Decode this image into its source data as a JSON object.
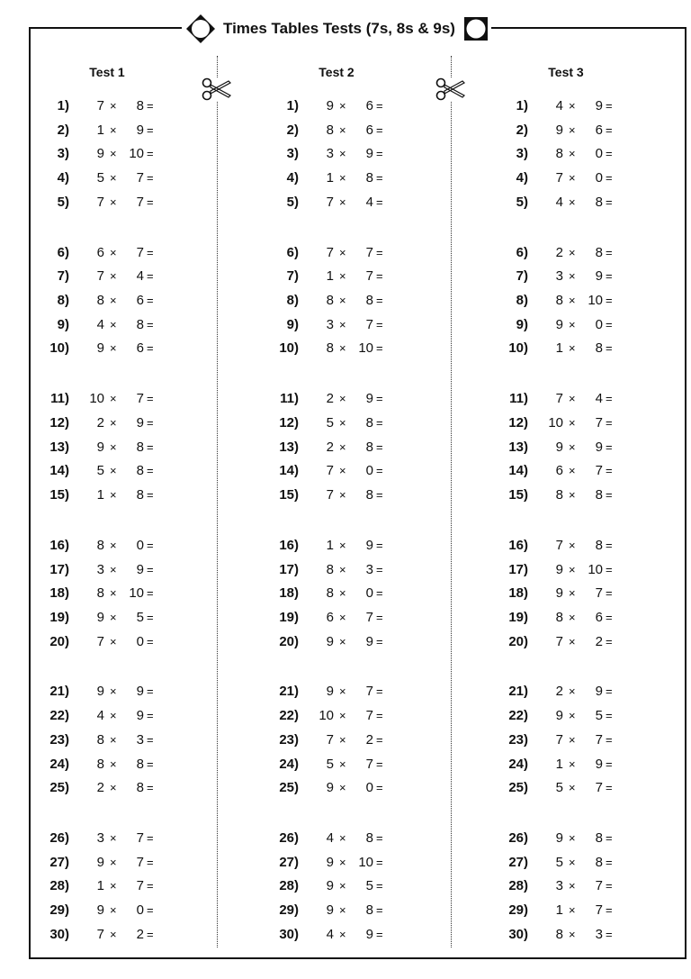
{
  "title": "Times Tables Tests (7s, 8s & 9s)",
  "icons": {
    "left_marker": "diamond-circle-icon",
    "right_marker": "square-circle-icon",
    "cut": "scissors-icon"
  },
  "operator": "×",
  "equals": "=",
  "tests": [
    {
      "title": "Test 1",
      "problems": [
        {
          "n": "1)",
          "a": "7",
          "b": "8"
        },
        {
          "n": "2)",
          "a": "1",
          "b": "9"
        },
        {
          "n": "3)",
          "a": "9",
          "b": "10"
        },
        {
          "n": "4)",
          "a": "5",
          "b": "7"
        },
        {
          "n": "5)",
          "a": "7",
          "b": "7"
        },
        {
          "n": "6)",
          "a": "6",
          "b": "7"
        },
        {
          "n": "7)",
          "a": "7",
          "b": "4"
        },
        {
          "n": "8)",
          "a": "8",
          "b": "6"
        },
        {
          "n": "9)",
          "a": "4",
          "b": "8"
        },
        {
          "n": "10)",
          "a": "9",
          "b": "6"
        },
        {
          "n": "11)",
          "a": "10",
          "b": "7"
        },
        {
          "n": "12)",
          "a": "2",
          "b": "9"
        },
        {
          "n": "13)",
          "a": "9",
          "b": "8"
        },
        {
          "n": "14)",
          "a": "5",
          "b": "8"
        },
        {
          "n": "15)",
          "a": "1",
          "b": "8"
        },
        {
          "n": "16)",
          "a": "8",
          "b": "0"
        },
        {
          "n": "17)",
          "a": "3",
          "b": "9"
        },
        {
          "n": "18)",
          "a": "8",
          "b": "10"
        },
        {
          "n": "19)",
          "a": "9",
          "b": "5"
        },
        {
          "n": "20)",
          "a": "7",
          "b": "0"
        },
        {
          "n": "21)",
          "a": "9",
          "b": "9"
        },
        {
          "n": "22)",
          "a": "4",
          "b": "9"
        },
        {
          "n": "23)",
          "a": "8",
          "b": "3"
        },
        {
          "n": "24)",
          "a": "8",
          "b": "8"
        },
        {
          "n": "25)",
          "a": "2",
          "b": "8"
        },
        {
          "n": "26)",
          "a": "3",
          "b": "7"
        },
        {
          "n": "27)",
          "a": "9",
          "b": "7"
        },
        {
          "n": "28)",
          "a": "1",
          "b": "7"
        },
        {
          "n": "29)",
          "a": "9",
          "b": "0"
        },
        {
          "n": "30)",
          "a": "7",
          "b": "2"
        }
      ]
    },
    {
      "title": "Test 2",
      "problems": [
        {
          "n": "1)",
          "a": "9",
          "b": "6"
        },
        {
          "n": "2)",
          "a": "8",
          "b": "6"
        },
        {
          "n": "3)",
          "a": "3",
          "b": "9"
        },
        {
          "n": "4)",
          "a": "1",
          "b": "8"
        },
        {
          "n": "5)",
          "a": "7",
          "b": "4"
        },
        {
          "n": "6)",
          "a": "7",
          "b": "7"
        },
        {
          "n": "7)",
          "a": "1",
          "b": "7"
        },
        {
          "n": "8)",
          "a": "8",
          "b": "8"
        },
        {
          "n": "9)",
          "a": "3",
          "b": "7"
        },
        {
          "n": "10)",
          "a": "8",
          "b": "10"
        },
        {
          "n": "11)",
          "a": "2",
          "b": "9"
        },
        {
          "n": "12)",
          "a": "5",
          "b": "8"
        },
        {
          "n": "13)",
          "a": "2",
          "b": "8"
        },
        {
          "n": "14)",
          "a": "7",
          "b": "0"
        },
        {
          "n": "15)",
          "a": "7",
          "b": "8"
        },
        {
          "n": "16)",
          "a": "1",
          "b": "9"
        },
        {
          "n": "17)",
          "a": "8",
          "b": "3"
        },
        {
          "n": "18)",
          "a": "8",
          "b": "0"
        },
        {
          "n": "19)",
          "a": "6",
          "b": "7"
        },
        {
          "n": "20)",
          "a": "9",
          "b": "9"
        },
        {
          "n": "21)",
          "a": "9",
          "b": "7"
        },
        {
          "n": "22)",
          "a": "10",
          "b": "7"
        },
        {
          "n": "23)",
          "a": "7",
          "b": "2"
        },
        {
          "n": "24)",
          "a": "5",
          "b": "7"
        },
        {
          "n": "25)",
          "a": "9",
          "b": "0"
        },
        {
          "n": "26)",
          "a": "4",
          "b": "8"
        },
        {
          "n": "27)",
          "a": "9",
          "b": "10"
        },
        {
          "n": "28)",
          "a": "9",
          "b": "5"
        },
        {
          "n": "29)",
          "a": "9",
          "b": "8"
        },
        {
          "n": "30)",
          "a": "4",
          "b": "9"
        }
      ]
    },
    {
      "title": "Test 3",
      "problems": [
        {
          "n": "1)",
          "a": "4",
          "b": "9"
        },
        {
          "n": "2)",
          "a": "9",
          "b": "6"
        },
        {
          "n": "3)",
          "a": "8",
          "b": "0"
        },
        {
          "n": "4)",
          "a": "7",
          "b": "0"
        },
        {
          "n": "5)",
          "a": "4",
          "b": "8"
        },
        {
          "n": "6)",
          "a": "2",
          "b": "8"
        },
        {
          "n": "7)",
          "a": "3",
          "b": "9"
        },
        {
          "n": "8)",
          "a": "8",
          "b": "10"
        },
        {
          "n": "9)",
          "a": "9",
          "b": "0"
        },
        {
          "n": "10)",
          "a": "1",
          "b": "8"
        },
        {
          "n": "11)",
          "a": "7",
          "b": "4"
        },
        {
          "n": "12)",
          "a": "10",
          "b": "7"
        },
        {
          "n": "13)",
          "a": "9",
          "b": "9"
        },
        {
          "n": "14)",
          "a": "6",
          "b": "7"
        },
        {
          "n": "15)",
          "a": "8",
          "b": "8"
        },
        {
          "n": "16)",
          "a": "7",
          "b": "8"
        },
        {
          "n": "17)",
          "a": "9",
          "b": "10"
        },
        {
          "n": "18)",
          "a": "9",
          "b": "7"
        },
        {
          "n": "19)",
          "a": "8",
          "b": "6"
        },
        {
          "n": "20)",
          "a": "7",
          "b": "2"
        },
        {
          "n": "21)",
          "a": "2",
          "b": "9"
        },
        {
          "n": "22)",
          "a": "9",
          "b": "5"
        },
        {
          "n": "23)",
          "a": "7",
          "b": "7"
        },
        {
          "n": "24)",
          "a": "1",
          "b": "9"
        },
        {
          "n": "25)",
          "a": "5",
          "b": "7"
        },
        {
          "n": "26)",
          "a": "9",
          "b": "8"
        },
        {
          "n": "27)",
          "a": "5",
          "b": "8"
        },
        {
          "n": "28)",
          "a": "3",
          "b": "7"
        },
        {
          "n": "29)",
          "a": "1",
          "b": "7"
        },
        {
          "n": "30)",
          "a": "8",
          "b": "3"
        }
      ]
    }
  ]
}
